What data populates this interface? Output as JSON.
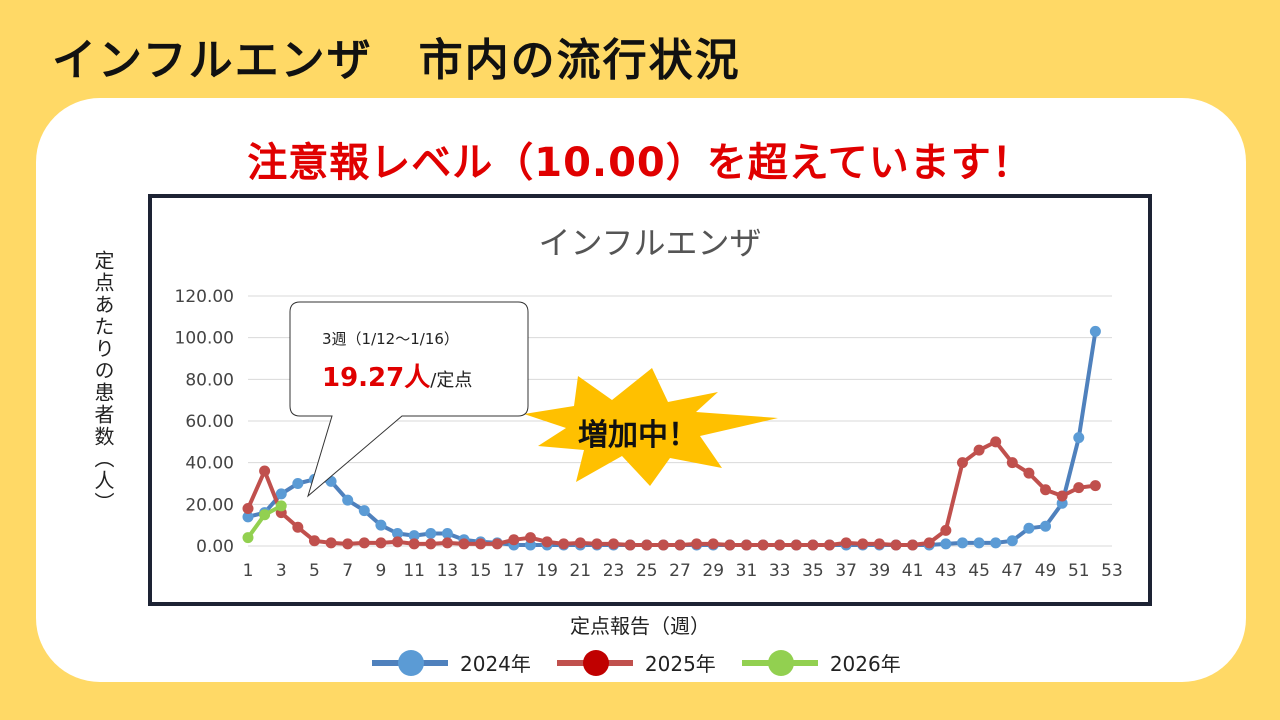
{
  "header": {
    "title": "インフルエンザ　市内の流行状況"
  },
  "alert": {
    "text": "注意報レベル（10.00）を超えています！"
  },
  "callout": {
    "week_label": "3週（1/12〜1/16）",
    "value": "19.27人",
    "unit": "/定点"
  },
  "burst": {
    "text": "増加中！"
  },
  "colors": {
    "background": "#ffd966",
    "series_2024": "#4f81bd",
    "series_2025": "#c0504d",
    "series_2026": "#92d050",
    "alert": "#e00000",
    "frame": "#1d2334"
  },
  "chart_data": {
    "type": "line",
    "title": "インフルエンザ",
    "xlabel": "定点報告（週）",
    "ylabel": "定点あたりの患者数（人）",
    "ylim": [
      0,
      120
    ],
    "xlim": [
      1,
      53
    ],
    "y_ticks": [
      "0.00",
      "20.00",
      "40.00",
      "60.00",
      "80.00",
      "100.00",
      "120.00"
    ],
    "x_ticks": [
      "1",
      "3",
      "5",
      "7",
      "9",
      "11",
      "13",
      "15",
      "17",
      "19",
      "21",
      "23",
      "25",
      "27",
      "29",
      "31",
      "33",
      "35",
      "37",
      "39",
      "41",
      "43",
      "45",
      "47",
      "49",
      "51",
      "53"
    ],
    "grid": true,
    "legend_position": "bottom",
    "series": [
      {
        "name": "2024年",
        "x": [
          1,
          2,
          3,
          4,
          5,
          6,
          7,
          8,
          9,
          10,
          11,
          12,
          13,
          14,
          15,
          16,
          17,
          18,
          19,
          20,
          21,
          22,
          23,
          24,
          25,
          26,
          27,
          28,
          29,
          30,
          31,
          32,
          33,
          34,
          35,
          36,
          37,
          38,
          39,
          40,
          41,
          42,
          43,
          44,
          45,
          46,
          47,
          48,
          49,
          50,
          51,
          52
        ],
        "values": [
          14,
          16,
          25,
          30,
          32,
          31,
          22,
          17,
          10,
          6,
          5,
          6,
          6,
          3,
          2,
          1.5,
          0.5,
          0.5,
          0.5,
          0.5,
          0.5,
          0.5,
          0.5,
          0.5,
          0.5,
          0.5,
          0.5,
          0.5,
          0.5,
          0.5,
          0.5,
          0.5,
          0.5,
          0.5,
          0.5,
          0.5,
          0.5,
          0.5,
          0.5,
          0.5,
          0.5,
          0.5,
          1,
          1.5,
          1.5,
          1.5,
          2.5,
          8.5,
          9.5,
          20.5,
          52,
          103
        ]
      },
      {
        "name": "2025年",
        "x": [
          1,
          2,
          3,
          4,
          5,
          6,
          7,
          8,
          9,
          10,
          11,
          12,
          13,
          14,
          15,
          16,
          17,
          18,
          19,
          20,
          21,
          22,
          23,
          24,
          25,
          26,
          27,
          28,
          29,
          30,
          31,
          32,
          33,
          34,
          35,
          36,
          37,
          38,
          39,
          40,
          41,
          42,
          43,
          44,
          45,
          46,
          47,
          48,
          49,
          50,
          51,
          52
        ],
        "values": [
          18,
          36,
          16,
          9,
          2.5,
          1.5,
          1,
          1.5,
          1.5,
          2,
          1,
          1,
          1.5,
          1,
          1,
          1,
          3,
          4,
          2,
          1,
          1.5,
          1,
          1,
          0.5,
          0.5,
          0.5,
          0.5,
          1,
          1,
          0.5,
          0.5,
          0.5,
          0.5,
          0.5,
          0.5,
          0.5,
          1.5,
          1,
          1,
          0.5,
          0.5,
          1.5,
          7.5,
          40,
          46,
          50,
          40,
          35,
          27,
          24,
          28,
          29
        ]
      },
      {
        "name": "2026年",
        "x": [
          1,
          2,
          3
        ],
        "values": [
          4,
          15,
          19.27
        ]
      }
    ]
  }
}
